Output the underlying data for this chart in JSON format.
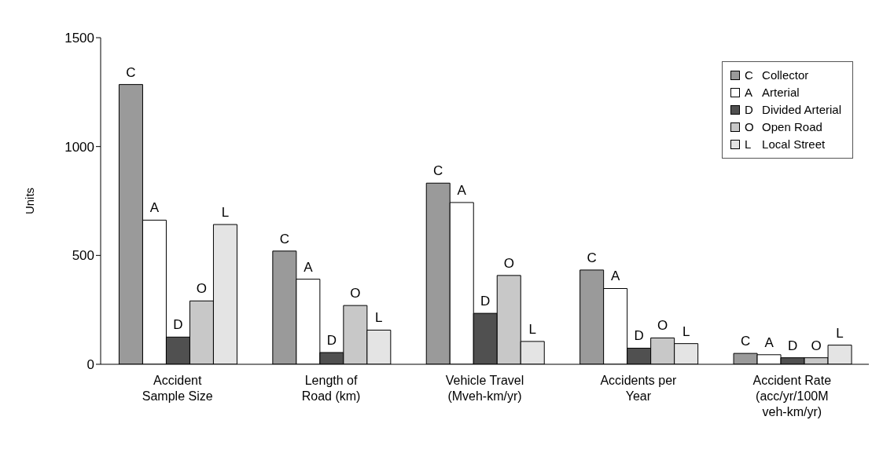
{
  "chart_data": {
    "type": "bar",
    "ylabel": "Units",
    "categories": [
      "Accident\nSample Size",
      "Length of\nRoad (km)",
      "Vehicle Travel\n(Mveh-km/yr)",
      "Accidents per\nYear",
      "Accident Rate\n(acc/yr/100M\nveh-km/yr)"
    ],
    "series": [
      {
        "name": "Collector",
        "color": "#9a9a9a",
        "values": [
          1285,
          520,
          832,
          433,
          50
        ],
        "value_labels": [
          "C",
          "C",
          "C",
          "C",
          "C"
        ]
      },
      {
        "name": "Arterial",
        "color": "#ffffff",
        "values": [
          662,
          391,
          743,
          348,
          44
        ],
        "value_labels": [
          "A",
          "A",
          "A",
          "A",
          "A"
        ]
      },
      {
        "name": "Divided Arterial",
        "color": "#505050",
        "values": [
          125,
          54,
          234,
          74,
          30
        ],
        "value_labels": [
          "D",
          "D",
          "D",
          "D",
          "D"
        ]
      },
      {
        "name": "Open Road",
        "color": "#c8c8c8",
        "values": [
          291,
          270,
          408,
          121,
          30
        ],
        "value_labels": [
          "O",
          "O",
          "O",
          "O",
          "O"
        ]
      },
      {
        "name": "Local Street",
        "color": "#e4e4e4",
        "values": [
          642,
          157,
          105,
          95,
          88
        ],
        "value_labels": [
          "L",
          "L",
          "L",
          "L",
          "L"
        ]
      }
    ],
    "ylim": [
      0,
      1500
    ],
    "yticks": [
      0,
      500,
      1000,
      1500
    ],
    "grid": false,
    "legend": "top right"
  }
}
